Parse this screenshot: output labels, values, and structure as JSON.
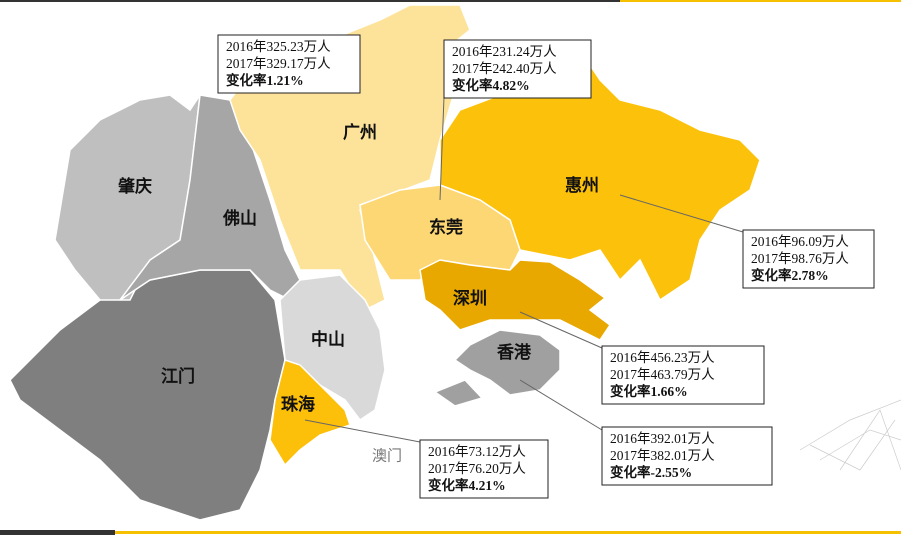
{
  "regions": {
    "guangzhou": "广州",
    "zhaoqing": "肇庆",
    "foshan": "佛山",
    "dongguan": "东莞",
    "huizhou": "惠州",
    "shenzhen": "深圳",
    "zhongshan": "中山",
    "jiangmen": "江门",
    "zhuhai": "珠海",
    "hongkong": "香港",
    "macau": "澳门"
  },
  "callouts": {
    "guangzhou": [
      "2016年325.23万人",
      "2017年329.17万人",
      "变化率1.21%"
    ],
    "dongguan": [
      "2016年231.24万人",
      "2017年242.40万人",
      "变化率4.82%"
    ],
    "huizhou": [
      "2016年96.09万人",
      "2017年98.76万人",
      "变化率2.78%"
    ],
    "shenzhen": [
      "2016年456.23万人",
      "2017年463.79万人",
      "变化率1.66%"
    ],
    "hongkong": [
      "2016年392.01万人",
      "2017年382.01万人",
      "变化率-2.55%"
    ],
    "zhuhai": [
      "2016年73.12万人",
      "2017年76.20万人",
      "变化率4.21%"
    ]
  }
}
